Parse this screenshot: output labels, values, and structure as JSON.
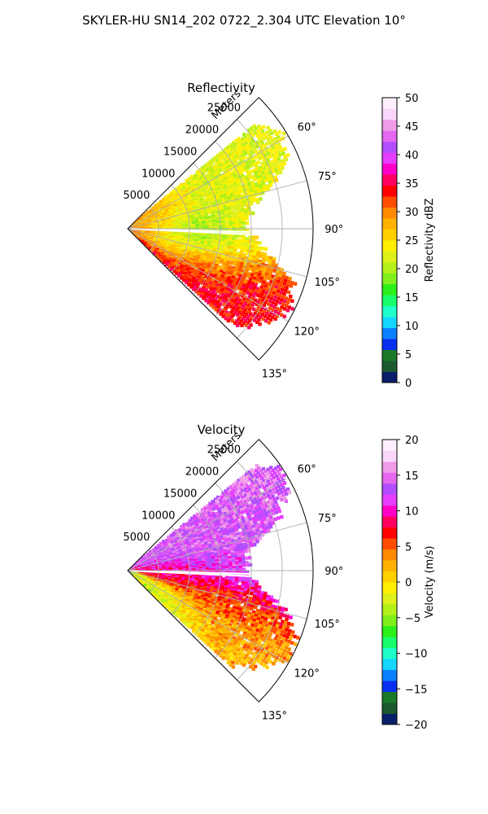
{
  "figure": {
    "title": "SKYLER-HU  SN14_202  0722_2.304 UTC Elevation 10°"
  },
  "chart_data": [
    {
      "type": "heatmap",
      "subtype": "polar-sector",
      "title": "Reflectivity",
      "radial_label": "Meters",
      "radial_ticks": [
        5000,
        10000,
        15000,
        20000,
        25000
      ],
      "radial_tick_labels": [
        "5000",
        "10000",
        "15000",
        "20000",
        "25000"
      ],
      "rlim": [
        0,
        30000
      ],
      "angular_ticks": [
        60,
        75,
        90,
        105,
        120,
        135
      ],
      "angular_tick_labels": [
        "60°",
        "75°",
        "90°",
        "105°",
        "120°",
        "135°"
      ],
      "theta_range_deg": [
        45,
        135
      ],
      "grid": true,
      "colorbar": {
        "label": "Reflectivity dBZ",
        "range": [
          0,
          50
        ],
        "ticks": [
          0,
          5,
          10,
          15,
          20,
          25,
          30,
          35,
          40,
          45,
          50
        ],
        "tick_labels": [
          "0",
          "5",
          "10",
          "15",
          "20",
          "25",
          "30",
          "35",
          "40",
          "45",
          "50"
        ],
        "colors": [
          "#0a1f6b",
          "#1c5a2e",
          "#1a7a2a",
          "#0a2ff0",
          "#0a80ff",
          "#14d6ff",
          "#1effc9",
          "#19ff6c",
          "#2bf01a",
          "#7ff01c",
          "#b4f01a",
          "#dff01a",
          "#ffef00",
          "#ffd000",
          "#ffb300",
          "#ff8a00",
          "#ff4d00",
          "#ff0000",
          "#ff0060",
          "#ff00c8",
          "#e63dff",
          "#b24dff",
          "#e566f0",
          "#f09ce8",
          "#f9d7fb",
          "#fdeffd"
        ]
      },
      "features": [
        {
          "theta": 86,
          "r": 19000,
          "level": 24
        },
        {
          "theta": 76,
          "r": 18000,
          "level": 22
        },
        {
          "theta": 100,
          "r": 13000,
          "level": 20
        },
        {
          "theta": 115,
          "r": 17500,
          "level": 34
        },
        {
          "theta": 82,
          "r": 6000,
          "level": 30
        },
        {
          "theta": 92,
          "r": 2000,
          "level": 35
        },
        {
          "theta": 88,
          "r": 9000,
          "level": 12
        }
      ]
    },
    {
      "type": "heatmap",
      "subtype": "polar-sector",
      "title": "Velocity",
      "radial_label": "Meters",
      "radial_ticks": [
        5000,
        10000,
        15000,
        20000,
        25000
      ],
      "radial_tick_labels": [
        "5000",
        "10000",
        "15000",
        "20000",
        "25000"
      ],
      "rlim": [
        0,
        30000
      ],
      "angular_ticks": [
        60,
        75,
        90,
        105,
        120,
        135
      ],
      "angular_tick_labels": [
        "60°",
        "75°",
        "90°",
        "105°",
        "120°",
        "135°"
      ],
      "theta_range_deg": [
        45,
        135
      ],
      "grid": true,
      "colorbar": {
        "label": "Velocity (m/s)",
        "range": [
          -20,
          20
        ],
        "ticks": [
          -20,
          -15,
          -10,
          -5,
          0,
          5,
          10,
          15,
          20
        ],
        "tick_labels": [
          "−20",
          "−15",
          "−10",
          "−5",
          "0",
          "5",
          "10",
          "15",
          "20"
        ],
        "colors": [
          "#0a1f6b",
          "#1c5a2e",
          "#1a7a2a",
          "#0a2ff0",
          "#0a80ff",
          "#14d6ff",
          "#1effc9",
          "#19ff6c",
          "#2bf01a",
          "#7ff01c",
          "#b4f01a",
          "#dff01a",
          "#ffef00",
          "#ffd000",
          "#ffb300",
          "#ff8a00",
          "#ff4d00",
          "#ff0000",
          "#ff0060",
          "#ff00c8",
          "#e63dff",
          "#b24dff",
          "#e566f0",
          "#f09ce8",
          "#f9d7fb",
          "#fdeffd"
        ]
      },
      "features": [
        {
          "theta": 75,
          "r": 15000,
          "level": 14
        },
        {
          "theta": 88,
          "r": 20000,
          "level": 13
        },
        {
          "theta": 95,
          "r": 10000,
          "level": 9
        },
        {
          "theta": 110,
          "r": 16000,
          "level": 6
        },
        {
          "theta": 122,
          "r": 18000,
          "level": 2
        },
        {
          "theta": 128,
          "r": 8000,
          "level": -3
        }
      ]
    }
  ]
}
